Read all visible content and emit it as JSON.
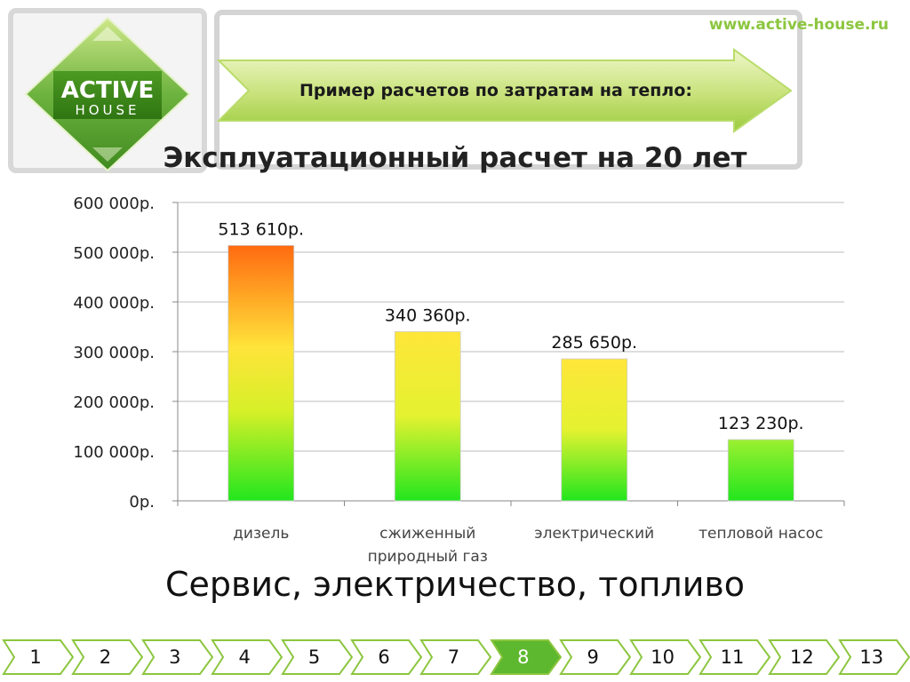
{
  "header": {
    "logo_text_top": "ACTIVE",
    "logo_text_bottom": "HOUSE",
    "url": "www.active-house.ru",
    "banner": "Пример расчетов по затратам на тепло:"
  },
  "chart_data": {
    "type": "bar",
    "title": "Эксплуатационный расчет на 20 лет",
    "categories": [
      "дизель",
      "сжиженный природный газ",
      "электрический",
      "тепловой насос"
    ],
    "category_lines": [
      [
        "дизель"
      ],
      [
        "сжиженный",
        "природный газ"
      ],
      [
        "электрический"
      ],
      [
        "тепловой насос"
      ]
    ],
    "values": [
      513610,
      340360,
      285650,
      123230
    ],
    "data_labels": [
      "513 610р.",
      "340 360р.",
      "285 650р.",
      "123 230р."
    ],
    "y_ticks": [
      0,
      100000,
      200000,
      300000,
      400000,
      500000,
      600000
    ],
    "y_tick_labels": [
      "0р.",
      "100 000р.",
      "200 000р.",
      "300 000р.",
      "400 000р.",
      "500 000р.",
      "600 000р."
    ],
    "ylim": [
      0,
      600000
    ],
    "grid": true,
    "colors": {
      "bottom": "#22e61e",
      "middle": "#ffee3a",
      "top_high": "#ff6a10"
    }
  },
  "footer_text": "Сервис, электричество, топливо",
  "pager": {
    "pages": [
      "1",
      "2",
      "3",
      "4",
      "5",
      "6",
      "7",
      "8",
      "9",
      "10",
      "11",
      "12",
      "13"
    ],
    "active": "8",
    "colors": {
      "normal": "#ffffff",
      "active": "#5db82f",
      "border": "#8cc63f"
    }
  }
}
